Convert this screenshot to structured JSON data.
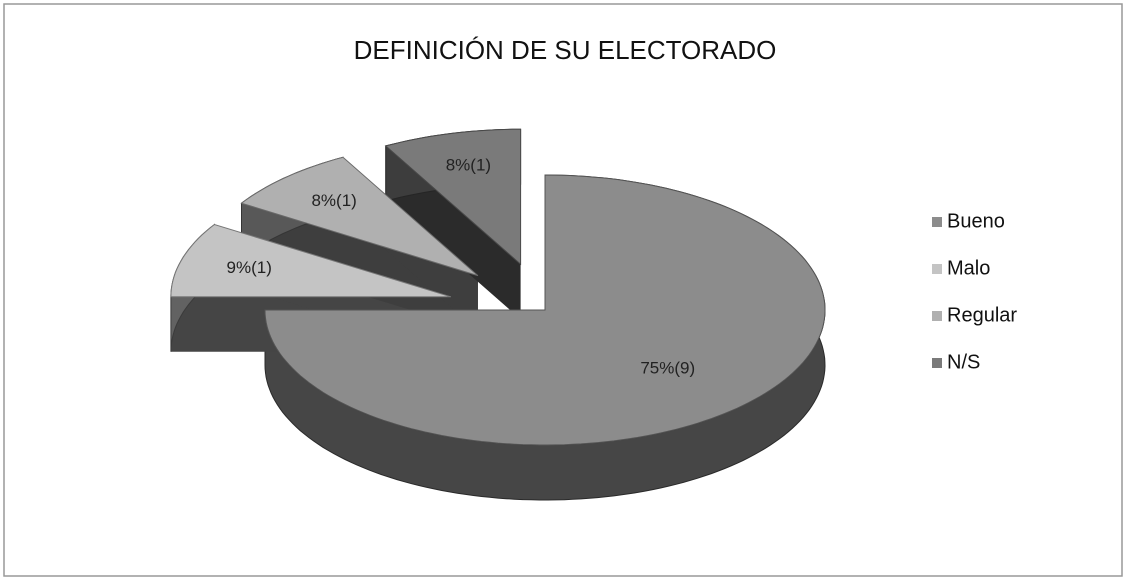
{
  "chart_data": {
    "type": "pie",
    "title": "DEFINICIÓN DE SU ELECTORADO",
    "categories": [
      "Bueno",
      "Malo",
      "Regular",
      "N/S"
    ],
    "values": [
      75,
      9,
      8,
      8
    ],
    "value_labels": [
      "75%(9)",
      "9%(1)",
      "8%(1)",
      "8%(1)"
    ],
    "colors": [
      "#8c8c8c",
      "#c4c4c4",
      "#b0b0b0",
      "#7a7a7a"
    ],
    "legend": "right"
  }
}
